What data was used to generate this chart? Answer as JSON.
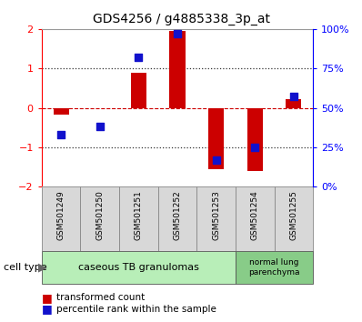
{
  "title": "GDS4256 / g4885338_3p_at",
  "samples": [
    "GSM501249",
    "GSM501250",
    "GSM501251",
    "GSM501252",
    "GSM501253",
    "GSM501254",
    "GSM501255"
  ],
  "transformed_counts": [
    -0.18,
    0.0,
    0.9,
    1.95,
    -1.55,
    -1.6,
    0.22
  ],
  "percentile_ranks": [
    33,
    38,
    82,
    97,
    17,
    25,
    57
  ],
  "ylim_left": [
    -2,
    2
  ],
  "ylim_right": [
    0,
    100
  ],
  "yticks_left": [
    -2,
    -1,
    0,
    1,
    2
  ],
  "ytick_vals_right": [
    0,
    25,
    50,
    75,
    100
  ],
  "bar_color": "#cc0000",
  "dot_color": "#1111cc",
  "sample_box_color": "#d8d8d8",
  "group1_label": "caseous TB granulomas",
  "group1_indices": [
    0,
    1,
    2,
    3,
    4
  ],
  "group2_label": "normal lung\nparenchyma",
  "group2_indices": [
    5,
    6
  ],
  "group1_color": "#b8eeb8",
  "group2_color": "#88cc88",
  "legend_bar_label": "transformed count",
  "legend_dot_label": "percentile rank within the sample",
  "cell_type_label": "cell type",
  "zero_line_color": "#cc0000",
  "dot_line_color": "#333333",
  "title_fontsize": 10,
  "bar_width": 0.4,
  "dot_size": 35
}
